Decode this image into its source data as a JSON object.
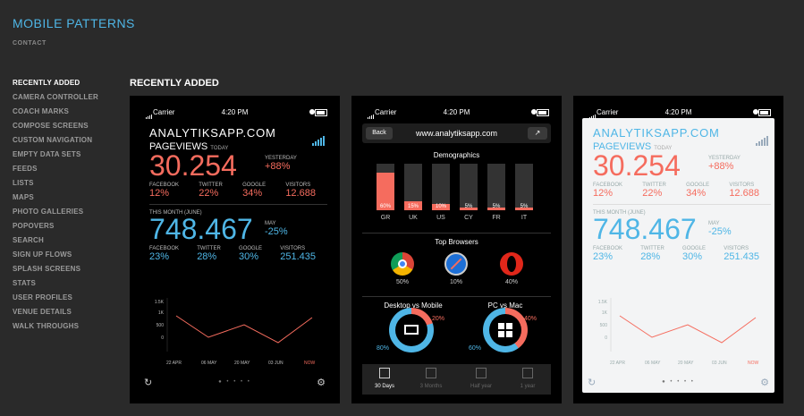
{
  "site": {
    "title": "MOBILE PATTERNS",
    "contact": "CONTACT"
  },
  "nav": [
    "RECENTLY ADDED",
    "CAMERA CONTROLLER",
    "COACH MARKS",
    "COMPOSE SCREENS",
    "CUSTOM NAVIGATION",
    "EMPTY DATA SETS",
    "FEEDS",
    "LISTS",
    "MAPS",
    "PHOTO GALLERIES",
    "POPOVERS",
    "SEARCH",
    "SIGN UP FLOWS",
    "SPLASH SCREENS",
    "STATS",
    "USER PROFILES",
    "VENUE DETAILS",
    "WALK THROUGHS"
  ],
  "section_title": "RECENTLY ADDED",
  "status": {
    "carrier": "Carrier",
    "time": "4:20 PM"
  },
  "analytics": {
    "brand": "ANALYTIKSAPP.COM",
    "pageviews": "PAGEVIEWS",
    "today": "TODAY",
    "today_value": "30.254",
    "yesterday_label": "YESTERDAY",
    "yesterday_value": "+88%",
    "fb_label": "FACEBOOK",
    "fb_today": "12%",
    "tw_label": "TWITTER",
    "tw_today": "22%",
    "gg_label": "GOOGLE",
    "gg_today": "34%",
    "visitors_label": "VISITORS",
    "visitors_today": "12.688",
    "month_label": "THIS MONTH (JUNE)",
    "month_value": "748.467",
    "may_label": "MAY",
    "may_value": "-25%",
    "fb_month": "23%",
    "tw_month": "28%",
    "gg_month": "30%",
    "visitors_month": "251.435",
    "y_ticks": [
      "1.5K",
      "1K",
      "500",
      "0"
    ],
    "x_ticks": [
      "22 APR",
      "06 MAY",
      "20 MAY",
      "03 JUN",
      "NOW"
    ]
  },
  "browser": {
    "back": "Back",
    "url": "www.analytiksapp.com",
    "demographics_title": "Demographics",
    "demographics": [
      {
        "cat": "GR",
        "pct": "60%",
        "v": 60
      },
      {
        "cat": "UK",
        "pct": "15%",
        "v": 15
      },
      {
        "cat": "US",
        "pct": "10%",
        "v": 10
      },
      {
        "cat": "CY",
        "pct": "5%",
        "v": 5
      },
      {
        "cat": "FR",
        "pct": "5%",
        "v": 5
      },
      {
        "cat": "IT",
        "pct": "5%",
        "v": 5
      }
    ],
    "top_browsers_title": "Top Browsers",
    "browsers": [
      {
        "name": "chrome-icon",
        "pct": "50%"
      },
      {
        "name": "safari-icon",
        "pct": "10%"
      },
      {
        "name": "opera-icon",
        "pct": "40%"
      }
    ],
    "dvm_title": "Desktop vs Mobile",
    "dvm_a": "80%",
    "dvm_b": "20%",
    "pvm_title": "PC vs Mac",
    "pvm_a": "60%",
    "pvm_b": "40%",
    "tabs": [
      "30 Days",
      "3 Months",
      "Half year",
      "1 year"
    ]
  },
  "colors": {
    "accent": "#4fb6e6",
    "red": "#f56c5e",
    "bg": "#2a2a2a"
  }
}
